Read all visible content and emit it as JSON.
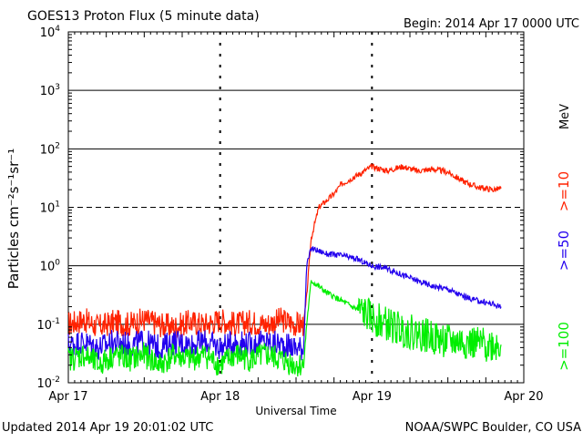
{
  "header": {
    "title": "GOES13 Proton Flux (5 minute data)",
    "begin": "Begin: 2014 Apr 17 0000 UTC"
  },
  "footer": {
    "updated": "Updated 2014 Apr 19 20:01:02 UTC",
    "source": "NOAA/SWPC Boulder, CO USA"
  },
  "chart_data": {
    "type": "line",
    "title": "GOES13 Proton Flux (5 minute data)",
    "xlabel": "Universal Time",
    "ylabel": "Particles cm⁻²s⁻¹sr⁻¹",
    "y_scale": "log",
    "ylim": [
      0.01,
      10000
    ],
    "xlim": [
      0,
      3
    ],
    "x_unit": "days since 2014 Apr 17 0000 UTC",
    "x_ticks": [
      "Apr 17",
      "Apr 18",
      "Apr 19",
      "Apr 20"
    ],
    "y_ticks": [
      {
        "value": 0.01,
        "base": "10",
        "exp": "-2"
      },
      {
        "value": 0.1,
        "base": "10",
        "exp": "-1"
      },
      {
        "value": 1,
        "base": "10",
        "exp": "0"
      },
      {
        "value": 10,
        "base": "10",
        "exp": "1"
      },
      {
        "value": 100,
        "base": "10",
        "exp": "2"
      },
      {
        "value": 1000,
        "base": "10",
        "exp": "3"
      },
      {
        "value": 10000,
        "base": "10",
        "exp": "4"
      }
    ],
    "right_axis_unit": "MeV",
    "threshold_lines": [
      0.1,
      10
    ],
    "grid": true,
    "legend_position": "right",
    "series": [
      {
        "name": ">=10",
        "color": "#ff2200",
        "x": [
          0,
          0.1,
          0.2,
          0.3,
          0.4,
          0.5,
          0.6,
          0.7,
          0.8,
          0.9,
          1.0,
          1.1,
          1.2,
          1.3,
          1.4,
          1.5,
          1.55,
          1.57,
          1.6,
          1.65,
          1.7,
          1.75,
          1.8,
          1.9,
          2.0,
          2.1,
          2.2,
          2.3,
          2.4,
          2.5,
          2.6,
          2.7,
          2.8,
          2.85
        ],
        "values": [
          0.1,
          0.12,
          0.09,
          0.11,
          0.1,
          0.12,
          0.1,
          0.09,
          0.11,
          0.1,
          0.12,
          0.1,
          0.11,
          0.1,
          0.12,
          0.1,
          0.1,
          0.3,
          3,
          10,
          13,
          17,
          25,
          35,
          50,
          42,
          50,
          42,
          45,
          40,
          28,
          22,
          20,
          21
        ]
      },
      {
        "name": ">=50",
        "color": "#2200ee",
        "x": [
          0,
          0.1,
          0.2,
          0.3,
          0.4,
          0.5,
          0.6,
          0.7,
          0.8,
          0.9,
          1.0,
          1.1,
          1.2,
          1.3,
          1.4,
          1.5,
          1.55,
          1.57,
          1.6,
          1.65,
          1.7,
          1.8,
          1.9,
          2.0,
          2.1,
          2.2,
          2.3,
          2.4,
          2.5,
          2.6,
          2.7,
          2.8,
          2.85
        ],
        "values": [
          0.045,
          0.05,
          0.04,
          0.05,
          0.045,
          0.05,
          0.04,
          0.05,
          0.045,
          0.05,
          0.04,
          0.05,
          0.045,
          0.05,
          0.045,
          0.04,
          0.04,
          1.0,
          2.0,
          1.8,
          1.6,
          1.5,
          1.3,
          1.0,
          0.9,
          0.7,
          0.55,
          0.45,
          0.4,
          0.3,
          0.25,
          0.22,
          0.2
        ]
      },
      {
        "name": ">=100",
        "color": "#00ee00",
        "x": [
          0,
          0.1,
          0.2,
          0.3,
          0.4,
          0.5,
          0.6,
          0.7,
          0.8,
          0.9,
          1.0,
          1.1,
          1.2,
          1.3,
          1.4,
          1.5,
          1.55,
          1.57,
          1.6,
          1.7,
          1.8,
          1.9,
          2.0,
          2.1,
          2.2,
          2.3,
          2.4,
          2.5,
          2.6,
          2.7,
          2.8,
          2.85
        ],
        "values": [
          0.025,
          0.03,
          0.02,
          0.03,
          0.025,
          0.03,
          0.02,
          0.03,
          0.025,
          0.03,
          0.02,
          0.03,
          0.025,
          0.03,
          0.025,
          0.02,
          0.02,
          0.1,
          0.55,
          0.35,
          0.25,
          0.18,
          0.13,
          0.1,
          0.08,
          0.07,
          0.06,
          0.05,
          0.05,
          0.045,
          0.045,
          0.045
        ]
      }
    ]
  }
}
